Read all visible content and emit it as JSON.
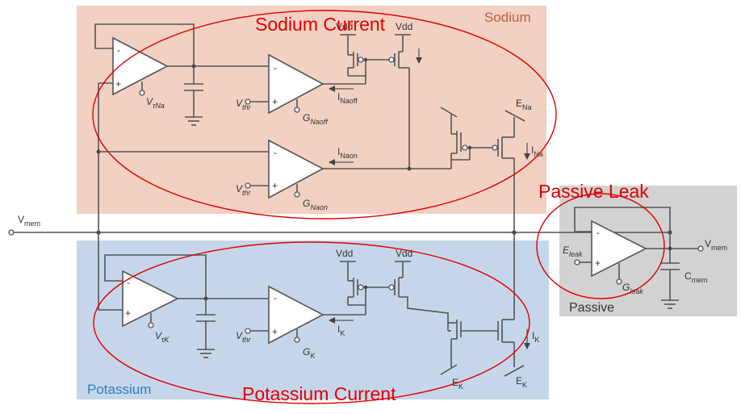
{
  "regions": {
    "sodium": "Sodium",
    "potassium": "Potassium",
    "passive": "Passive"
  },
  "titles": {
    "sodium_current": "Sodium Current",
    "potassium_current": "Potassium Current",
    "passive_leak": "Passive Leak"
  },
  "colors": {
    "sodium_bg": "#f2d0c2",
    "potassium_bg": "#c6d6ea",
    "passive_bg": "#d2d2d2",
    "highlight": "#e00000"
  },
  "labels": {
    "vmem_in": {
      "main": "V",
      "sub": "mem"
    },
    "vmem_out": {
      "main": "V",
      "sub": "mem"
    },
    "vdd": "Vdd",
    "v_tau_na": {
      "main": "V",
      "sub": "τNa"
    },
    "v_tau_k": {
      "main": "V",
      "sub": "τK"
    },
    "v_thr": {
      "main": "V",
      "sub": "thr"
    },
    "g_naoff": {
      "main": "G",
      "sub": "Naoff"
    },
    "g_naon": {
      "main": "G",
      "sub": "Naon"
    },
    "g_k": {
      "main": "G",
      "sub": "K"
    },
    "g_leak": {
      "main": "G",
      "sub": "leak"
    },
    "e_leak": {
      "main": "E",
      "sub": "leak"
    },
    "e_na": {
      "main": "E",
      "sub": "Na"
    },
    "e_k": {
      "main": "E",
      "sub": "K"
    },
    "i_naoff": {
      "main": "I",
      "sub": "Naoff"
    },
    "i_naon": {
      "main": "I",
      "sub": "Naon"
    },
    "i_na": {
      "main": "I",
      "sub": "Na"
    },
    "i_k": {
      "main": "I",
      "sub": "K"
    },
    "c_mem": {
      "main": "C",
      "sub": "mem"
    },
    "plus": "+",
    "minus": "-"
  }
}
